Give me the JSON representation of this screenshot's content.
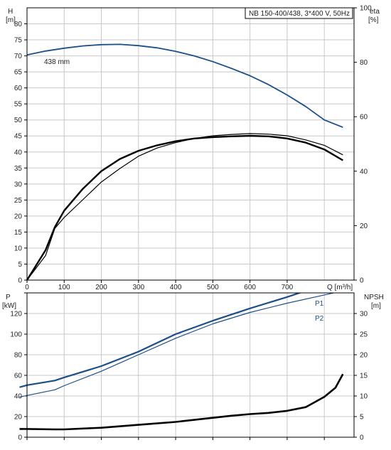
{
  "chart_data": [
    {
      "type": "line",
      "title": "NB 150-400/438, 3*400 V, 50Hz",
      "xlabel": "Q [m³/h]",
      "ylabel": "H",
      "ylabel_unit": "[m]",
      "y2label": "eta",
      "y2label_unit": "[%]",
      "xlim": [
        0,
        880
      ],
      "ylim": [
        0,
        85
      ],
      "y2lim": [
        0,
        100
      ],
      "grid": true,
      "x_ticks": [
        "0",
        "100",
        "200",
        "300",
        "400",
        "500",
        "600",
        "700"
      ],
      "y_ticks": [
        "0",
        "5",
        "10",
        "15",
        "20",
        "25",
        "30",
        "35",
        "40",
        "45",
        "50",
        "55",
        "60",
        "65",
        "70",
        "75",
        "80"
      ],
      "y2_ticks": [
        "0",
        "20",
        "40",
        "60",
        "80",
        "100"
      ],
      "annotation": "438 mm",
      "series": [
        {
          "name": "438 mm",
          "axis": "left",
          "color": "#1a4f8a",
          "x": [
            0,
            50,
            100,
            150,
            200,
            250,
            300,
            350,
            400,
            450,
            500,
            550,
            600,
            650,
            700,
            750,
            800,
            850
          ],
          "y": [
            70.3,
            71.5,
            72.4,
            73.1,
            73.5,
            73.6,
            73.2,
            72.5,
            71.4,
            70.0,
            68.2,
            66.1,
            63.8,
            61.0,
            57.8,
            54.2,
            50.0,
            47.7
          ]
        },
        {
          "axis": "right",
          "color": "#000000",
          "x": [
            0,
            50,
            75,
            100,
            150,
            200,
            250,
            300,
            350,
            400,
            450,
            500,
            550,
            600,
            650,
            700,
            750,
            800,
            850
          ],
          "y": [
            0,
            9,
            19,
            23,
            29.5,
            36,
            41,
            45.5,
            48.5,
            50.5,
            52,
            53,
            53.5,
            53.8,
            53.6,
            53,
            51.5,
            49.5,
            46
          ]
        },
        {
          "axis": "right",
          "color": "#000000",
          "x": [
            0,
            50,
            75,
            100,
            150,
            200,
            250,
            300,
            350,
            400,
            450,
            500,
            550,
            600,
            650,
            700,
            750,
            800,
            850
          ],
          "y": [
            0,
            11,
            19.5,
            25.5,
            33.5,
            40,
            44.5,
            47.5,
            49.5,
            51,
            52,
            52.5,
            52.8,
            53,
            52.8,
            52,
            50.5,
            48,
            44
          ]
        }
      ]
    },
    {
      "type": "line",
      "ylabel": "P",
      "ylabel_unit": "[kW]",
      "y2label": "NPSH",
      "y2label_unit": "[m]",
      "xlim": [
        0,
        880
      ],
      "ylim": [
        0,
        140
      ],
      "y2lim": [
        0,
        35
      ],
      "grid": true,
      "y_ticks": [
        "0",
        "20",
        "40",
        "60",
        "80",
        "100",
        "120"
      ],
      "y2_ticks": [
        "0",
        "5",
        "10",
        "15",
        "20",
        "25",
        "30"
      ],
      "series": [
        {
          "name": "P1",
          "axis": "left",
          "color": "#1a4f8a",
          "x": [
            -20,
            0,
            75,
            100,
            200,
            300,
            400,
            500,
            600,
            700,
            800,
            850
          ],
          "y": [
            48.5,
            50.5,
            55,
            58,
            69,
            83,
            100,
            113,
            125,
            136,
            148,
            153
          ]
        },
        {
          "name": "P2",
          "axis": "left",
          "color": "#1a4f8a",
          "x": [
            -20,
            0,
            75,
            100,
            200,
            300,
            400,
            500,
            600,
            700,
            800,
            850
          ],
          "y": [
            39,
            40.5,
            46,
            50,
            64,
            80,
            96,
            110,
            121,
            130,
            138,
            142
          ]
        },
        {
          "axis": "right",
          "color": "#000000",
          "x": [
            -20,
            0,
            75,
            100,
            200,
            300,
            400,
            500,
            550,
            600,
            650,
            700,
            750,
            800,
            830,
            850
          ],
          "y": [
            2,
            2,
            1.9,
            1.9,
            2.3,
            3.0,
            3.7,
            4.7,
            5.2,
            5.6,
            5.9,
            6.4,
            7.3,
            9.8,
            12.0,
            15.3
          ]
        }
      ]
    }
  ]
}
